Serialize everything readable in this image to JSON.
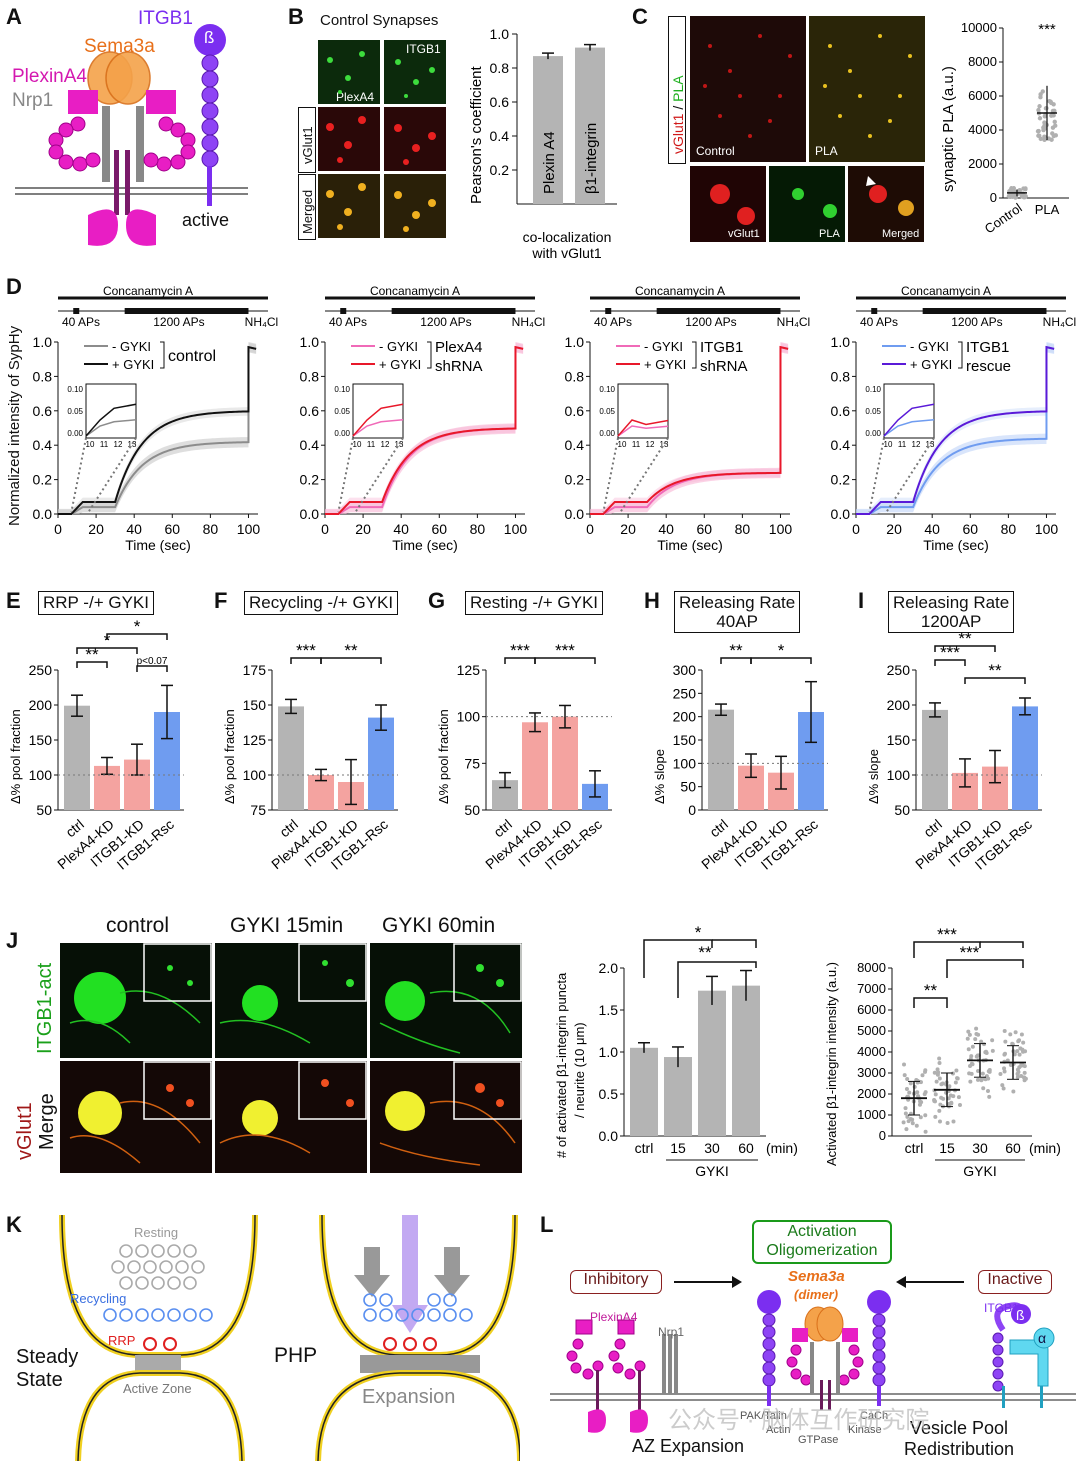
{
  "panels": {
    "A": {
      "letter": "A",
      "itgb1": "ITGB1",
      "sema3a": "Sema3a",
      "plexina4": "PlexinA4",
      "nrp1": "Nrp1",
      "beta": "ß",
      "active": "active"
    },
    "B": {
      "letter": "B",
      "title": "Control Synapses",
      "itgb1": "ITGB1",
      "plexa4": "PlexA4",
      "row_labels": [
        "vGlut1",
        "Merged"
      ]
    },
    "C": {
      "letter": "C",
      "ylabel_vglut1": "vGlut1",
      "ylabel_sep": " / ",
      "ylabel_pla": "PLA",
      "control": "Control",
      "pla": "PLA",
      "inset_labels": [
        "vGlut1",
        "PLA",
        "Merged"
      ]
    },
    "D": {
      "letter": "D",
      "ylabel": "Normalized intensity of SypHy",
      "xlabel": "Time (sec)",
      "protocol": {
        "top": "Concanamycin A",
        "a": "40 APs",
        "b": "1200 APs",
        "c": "NH₄Cl"
      },
      "minus": "- GYKI",
      "plus": "+ GYKI"
    },
    "E": {
      "letter": "E",
      "title": "RRP -/+ GYKI",
      "ylabel": "Δ% pool fraction"
    },
    "F": {
      "letter": "F",
      "title": "Recycling -/+ GYKI",
      "ylabel": "Δ% pool fraction"
    },
    "G": {
      "letter": "G",
      "title": "Resting -/+ GYKI",
      "ylabel": "Δ% pool fraction"
    },
    "H": {
      "letter": "H",
      "title1": "Releasing Rate",
      "title2": "40AP",
      "ylabel": "Δ% slope"
    },
    "I": {
      "letter": "I",
      "title1": "Releasing Rate",
      "title2": "1200AP",
      "ylabel": "Δ% slope"
    },
    "J": {
      "letter": "J",
      "cols": [
        "control",
        "GYKI 15min",
        "GYKI 60min"
      ],
      "row1": "ITGB1-act",
      "row2a": "vGlut1",
      "row2b": "Merge",
      "bar_ylabel1": "# of activated β1-integrin puncta",
      "bar_ylabel2": "/ neurite (10 μm)",
      "dot_ylabel": "Activated β1-integrin intensity (a.u.)",
      "gyki": "GYKI",
      "min": "(min)"
    },
    "K": {
      "letter": "K",
      "resting": "Resting",
      "recycling": "Recycling",
      "rrp": "RRP",
      "steady1": "Steady",
      "steady2": "State",
      "active_zone": "Active Zone",
      "php": "PHP",
      "expansion": "Expansion"
    },
    "L": {
      "letter": "L",
      "activation1": "Activation",
      "activation2": "Oligomerization",
      "inhibitory": "Inhibitory",
      "inactive": "Inactive",
      "sema3a": "Sema3a",
      "dimer": "(dimer)",
      "plexina4": "PlexinA4",
      "nrp1": "Nrp1",
      "itgb1": "ITGB1",
      "beta": "ß",
      "alpha": "α",
      "az": "AZ Expansion",
      "vesicle1": "Vesicle Pool",
      "vesicle2": "Redistribution",
      "pak": "PAK/Talin",
      "actin": "Actin",
      "gtpase": "GTPase",
      "cach": "CaCh",
      "kinase": "Kinase",
      "watermark": "公众号 · 脑体互作研究院"
    }
  },
  "chart_data": [
    {
      "type": "bar",
      "panel": "B",
      "categories": [
        "Plexin A4",
        "β1-integrin"
      ],
      "values": [
        0.87,
        0.92
      ],
      "ylabel": "Pearson's coefficient",
      "xlabel": "co-localization with vGlut1",
      "ylim": [
        0,
        1.0
      ],
      "yticks": [
        "0.2",
        "0.4",
        "0.6",
        "0.8",
        "1.0"
      ]
    },
    {
      "type": "scatter",
      "panel": "C",
      "categories": [
        "Control",
        "PLA"
      ],
      "means": [
        300,
        5000
      ],
      "ylabel": "synaptic PLA (a.u.)",
      "ylim": [
        0,
        10000
      ],
      "yticks": [
        "0",
        "2000",
        "4000",
        "6000",
        "8000",
        "10000"
      ],
      "sig": "***"
    },
    {
      "type": "line",
      "panel": "D1",
      "legend": [
        "- GYKI",
        "+ GYKI"
      ],
      "group": "control",
      "xticks": [
        "0",
        "20",
        "40",
        "60",
        "80",
        "100"
      ],
      "yticks": [
        "0.0",
        "0.2",
        "0.4",
        "0.6",
        "0.8",
        "1.0"
      ],
      "plateaus": [
        0.42,
        0.6
      ],
      "inset_yticks": [
        "0.10",
        "0.05",
        "0.00"
      ],
      "inset_xticks": [
        "10",
        "11",
        "12",
        "13"
      ]
    },
    {
      "type": "line",
      "panel": "D2",
      "legend": [
        "- GYKI",
        "+ GYKI"
      ],
      "group1": "PlexA4",
      "group2": "shRNA",
      "xticks": [
        "0",
        "20",
        "40",
        "60",
        "80",
        "100"
      ],
      "yticks": [
        "0.0",
        "0.2",
        "0.4",
        "0.6",
        "0.8",
        "1.0"
      ],
      "plateaus": [
        0.5,
        0.5
      ],
      "inset_yticks": [
        "0.10",
        "0.05",
        "0.00"
      ],
      "inset_xticks": [
        "10",
        "11",
        "12",
        "13"
      ]
    },
    {
      "type": "line",
      "panel": "D3",
      "legend": [
        "- GYKI",
        "+ GYKI"
      ],
      "group1": "ITGB1",
      "group2": "shRNA",
      "xticks": [
        "0",
        "20",
        "40",
        "60",
        "80",
        "100"
      ],
      "yticks": [
        "0.0",
        "0.2",
        "0.4",
        "0.6",
        "0.8",
        "1.0"
      ],
      "plateaus": [
        0.24,
        0.24
      ],
      "inset_yticks": [
        "0.10",
        "0.05",
        "0.00"
      ],
      "inset_xticks": [
        "10",
        "11",
        "12",
        "13"
      ]
    },
    {
      "type": "line",
      "panel": "D4",
      "legend": [
        "- GYKI",
        "+ GYKI"
      ],
      "group1": "ITGB1",
      "group2": "rescue",
      "xticks": [
        "0",
        "20",
        "40",
        "60",
        "80",
        "100"
      ],
      "yticks": [
        "0.0",
        "0.2",
        "0.4",
        "0.6",
        "0.8",
        "1.0"
      ],
      "plateaus": [
        0.44,
        0.6
      ],
      "inset_yticks": [
        "0.10",
        "0.05",
        "0.00"
      ],
      "inset_xticks": [
        "10",
        "11",
        "12",
        "13"
      ]
    },
    {
      "type": "bar",
      "panel": "E",
      "categories": [
        "ctrl",
        "PlexA4-KD",
        "ITGB1-KD",
        "ITGB1-Rsc"
      ],
      "values": [
        199,
        113,
        122,
        190
      ],
      "errors": [
        15,
        12,
        22,
        38
      ],
      "ylim": [
        50,
        250
      ],
      "yticks": [
        "50",
        "100",
        "150",
        "200",
        "250"
      ],
      "ref": 100,
      "sigs": [
        "**",
        "*",
        "*",
        "p<0.07"
      ]
    },
    {
      "type": "bar",
      "panel": "F",
      "categories": [
        "ctrl",
        "PlexA4-KD",
        "ITGB1-KD",
        "ITGB1-Rsc"
      ],
      "values": [
        149,
        100,
        95,
        141
      ],
      "errors": [
        5,
        4,
        16,
        9
      ],
      "ylim": [
        75,
        175
      ],
      "yticks": [
        "75",
        "100",
        "125",
        "150",
        "175"
      ],
      "ref": 100,
      "sigs": [
        "***",
        "**"
      ]
    },
    {
      "type": "bar",
      "panel": "G",
      "categories": [
        "ctrl",
        "PlexA4-KD",
        "ITGB1-KD",
        "ITGB1-Rsc"
      ],
      "values": [
        66,
        97,
        100,
        64
      ],
      "errors": [
        4,
        5,
        6,
        7
      ],
      "ylim": [
        50,
        125
      ],
      "yticks": [
        "50",
        "75",
        "100",
        "125"
      ],
      "ref": 100,
      "sigs": [
        "***",
        "***"
      ]
    },
    {
      "type": "bar",
      "panel": "H",
      "categories": [
        "ctrl",
        "PlexA4-KD",
        "ITGB1-KD",
        "ITGB1-Rsc"
      ],
      "values": [
        215,
        95,
        80,
        210
      ],
      "errors": [
        12,
        25,
        35,
        65
      ],
      "ylim": [
        0,
        300
      ],
      "yticks": [
        "0",
        "50",
        "100",
        "150",
        "200",
        "250",
        "300"
      ],
      "ref": 100,
      "sigs": [
        "**",
        "*"
      ]
    },
    {
      "type": "bar",
      "panel": "I",
      "categories": [
        "ctrl",
        "PlexA4-KD",
        "ITGB1-KD",
        "ITGB1-Rsc"
      ],
      "values": [
        193,
        103,
        112,
        198
      ],
      "errors": [
        10,
        20,
        23,
        12
      ],
      "ylim": [
        50,
        250
      ],
      "yticks": [
        "50",
        "100",
        "150",
        "200",
        "250"
      ],
      "ref": 100,
      "sigs": [
        "**",
        "***",
        "**"
      ]
    },
    {
      "type": "bar",
      "panel": "J1",
      "categories": [
        "ctrl",
        "15",
        "30",
        "60"
      ],
      "values": [
        1.05,
        0.94,
        1.73,
        1.79
      ],
      "errors": [
        0.06,
        0.12,
        0.17,
        0.18
      ],
      "ylim": [
        0,
        2.0
      ],
      "yticks": [
        "0.0",
        "0.5",
        "1.0",
        "1.5",
        "2.0"
      ],
      "sigs": [
        "*",
        "**"
      ]
    },
    {
      "type": "scatter",
      "panel": "J2",
      "categories": [
        "ctrl",
        "15",
        "30",
        "60"
      ],
      "means": [
        1800,
        2200,
        3600,
        3500
      ],
      "ylim": [
        0,
        8000
      ],
      "yticks": [
        "0",
        "1000",
        "2000",
        "3000",
        "4000",
        "5000",
        "6000",
        "7000",
        "8000"
      ],
      "sigs": [
        "***",
        "***",
        "**"
      ]
    }
  ]
}
